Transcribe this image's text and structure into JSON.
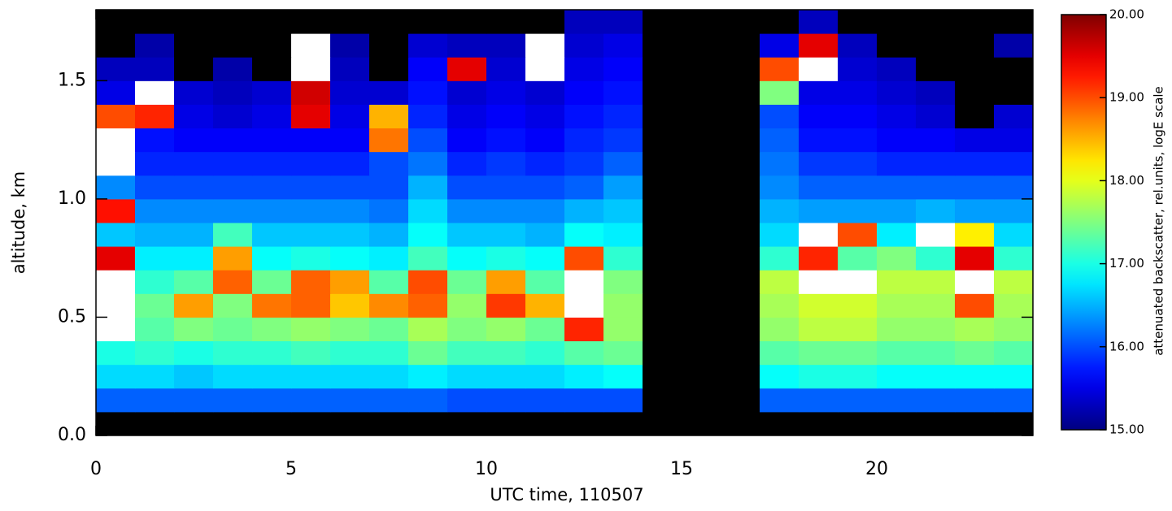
{
  "chart_data": {
    "type": "heatmap",
    "xlabel": "UTC time, 110507",
    "ylabel": "altitude, km",
    "colorbar_label": "attenuated backscatter, rel.units, logE scale",
    "colormap": "jet",
    "xlim": [
      0,
      24
    ],
    "ylim": [
      0,
      1.8
    ],
    "xticks": [
      0,
      5,
      10,
      15,
      20
    ],
    "yticks": [
      {
        "value": 0,
        "label": "0.0"
      },
      0.5,
      {
        "value": 1,
        "label": "1.0"
      },
      1.5
    ],
    "clim": [
      15,
      20
    ],
    "cticks": [
      {
        "value": 15,
        "label": "15.00"
      },
      {
        "value": 16,
        "label": "16.00"
      },
      {
        "value": 17,
        "label": "17.00"
      },
      {
        "value": 18,
        "label": "18.00"
      },
      {
        "value": 19,
        "label": "19.00"
      },
      {
        "value": 20,
        "label": "20.00"
      }
    ],
    "xbins": [
      0,
      1,
      2,
      3,
      4,
      5,
      6,
      7,
      8,
      9,
      10,
      11,
      12,
      13,
      14,
      15,
      16,
      17,
      18,
      19,
      20,
      21,
      22,
      23,
      24
    ],
    "ybins": [
      0,
      0.1,
      0.2,
      0.3,
      0.4,
      0.5,
      0.6,
      0.7,
      0.8,
      0.9,
      1.0,
      1.1,
      1.2,
      1.3,
      1.4,
      1.5,
      1.6,
      1.7,
      1.8
    ],
    "values": [
      [
        null,
        null,
        null,
        null,
        null,
        null,
        null,
        null,
        null,
        null,
        null,
        null,
        null,
        null,
        null,
        null,
        null,
        null,
        null,
        null,
        null,
        null,
        null,
        null
      ],
      [
        16.1,
        16.1,
        16.1,
        16.1,
        16.1,
        16.1,
        16.1,
        16.1,
        16.1,
        16.0,
        16.0,
        16.0,
        16.0,
        16.0,
        null,
        null,
        null,
        16.1,
        16.1,
        16.1,
        16.1,
        16.1,
        16.1,
        16.1
      ],
      [
        16.7,
        16.7,
        16.6,
        16.7,
        16.7,
        16.7,
        16.7,
        16.7,
        16.8,
        16.7,
        16.7,
        16.7,
        16.8,
        16.9,
        null,
        null,
        null,
        16.9,
        17.0,
        17.0,
        16.9,
        16.9,
        16.9,
        16.9
      ],
      [
        17.0,
        17.1,
        17.0,
        17.1,
        17.1,
        17.2,
        17.1,
        17.1,
        17.4,
        17.2,
        17.2,
        17.1,
        17.3,
        17.4,
        null,
        null,
        null,
        17.3,
        17.4,
        17.4,
        17.3,
        17.3,
        17.4,
        17.3
      ],
      [
        20.5,
        17.3,
        17.5,
        17.4,
        17.5,
        17.6,
        17.5,
        17.4,
        17.7,
        17.5,
        17.6,
        17.4,
        19.2,
        17.6,
        null,
        null,
        null,
        17.6,
        17.8,
        17.8,
        17.6,
        17.6,
        17.7,
        17.6
      ],
      [
        20.5,
        17.4,
        18.6,
        17.5,
        18.8,
        18.9,
        18.4,
        18.7,
        18.9,
        17.6,
        19.1,
        18.5,
        20.5,
        17.6,
        null,
        null,
        null,
        17.7,
        17.9,
        17.9,
        17.7,
        17.7,
        19.0,
        17.7
      ],
      [
        20.5,
        17.1,
        17.3,
        18.9,
        17.4,
        18.9,
        18.6,
        17.3,
        19.0,
        17.4,
        18.6,
        17.3,
        20.5,
        17.5,
        null,
        null,
        null,
        17.8,
        20.5,
        20.5,
        17.8,
        17.8,
        20.5,
        17.8
      ],
      [
        19.5,
        16.8,
        16.8,
        18.6,
        16.9,
        17.0,
        16.9,
        16.8,
        17.2,
        16.9,
        17.0,
        16.9,
        19.0,
        17.1,
        null,
        null,
        null,
        17.1,
        19.2,
        17.3,
        17.5,
        17.1,
        19.5,
        17.1
      ],
      [
        16.6,
        16.5,
        16.5,
        17.2,
        16.6,
        16.6,
        16.6,
        16.5,
        16.9,
        16.6,
        16.6,
        16.5,
        16.9,
        16.8,
        null,
        null,
        null,
        16.7,
        20.5,
        19.0,
        16.8,
        20.5,
        18.2,
        16.7
      ],
      [
        19.3,
        16.3,
        16.3,
        16.3,
        16.3,
        16.3,
        16.3,
        16.2,
        16.7,
        16.3,
        16.3,
        16.3,
        16.5,
        16.6,
        null,
        null,
        null,
        16.5,
        16.4,
        16.4,
        16.4,
        16.5,
        16.4,
        16.4
      ],
      [
        16.3,
        16.0,
        16.0,
        16.0,
        16.0,
        16.0,
        16.0,
        16.0,
        16.5,
        16.0,
        16.0,
        16.0,
        16.1,
        16.4,
        null,
        null,
        null,
        16.3,
        16.1,
        16.1,
        16.1,
        16.1,
        16.1,
        16.1
      ],
      [
        20.5,
        15.8,
        15.8,
        15.8,
        15.8,
        15.8,
        15.8,
        16.0,
        16.2,
        15.8,
        15.9,
        15.8,
        15.9,
        16.1,
        null,
        null,
        null,
        16.2,
        15.9,
        15.9,
        15.8,
        15.8,
        15.8,
        15.8
      ],
      [
        20.5,
        15.7,
        15.6,
        15.6,
        15.6,
        15.6,
        15.6,
        18.8,
        16.0,
        15.6,
        15.7,
        15.6,
        15.8,
        15.9,
        null,
        null,
        null,
        16.1,
        15.7,
        15.7,
        15.6,
        15.6,
        15.5,
        15.5
      ],
      [
        19.0,
        19.2,
        15.5,
        15.4,
        15.5,
        19.5,
        15.5,
        18.5,
        15.8,
        15.5,
        15.6,
        15.5,
        15.7,
        15.8,
        null,
        null,
        null,
        16.0,
        15.6,
        15.6,
        15.5,
        15.4,
        null,
        15.4
      ],
      [
        15.5,
        20.5,
        15.4,
        15.3,
        15.4,
        19.6,
        15.4,
        15.4,
        15.7,
        15.4,
        15.5,
        15.4,
        15.6,
        15.7,
        null,
        null,
        null,
        17.5,
        15.5,
        15.5,
        15.4,
        15.3,
        null,
        null
      ],
      [
        15.3,
        15.3,
        null,
        15.2,
        null,
        20.5,
        15.3,
        null,
        15.6,
        19.5,
        15.4,
        20.5,
        15.5,
        15.6,
        null,
        null,
        null,
        19.0,
        20.5,
        15.4,
        15.3,
        null,
        null,
        null
      ],
      [
        null,
        15.2,
        null,
        null,
        null,
        20.5,
        15.2,
        null,
        15.4,
        15.3,
        15.3,
        20.5,
        15.4,
        15.5,
        null,
        null,
        null,
        15.5,
        19.5,
        15.3,
        null,
        null,
        null,
        15.2
      ],
      [
        null,
        null,
        null,
        null,
        null,
        null,
        null,
        null,
        null,
        null,
        null,
        null,
        15.3,
        15.3,
        null,
        null,
        null,
        null,
        15.3,
        null,
        null,
        null,
        null,
        null
      ]
    ]
  }
}
